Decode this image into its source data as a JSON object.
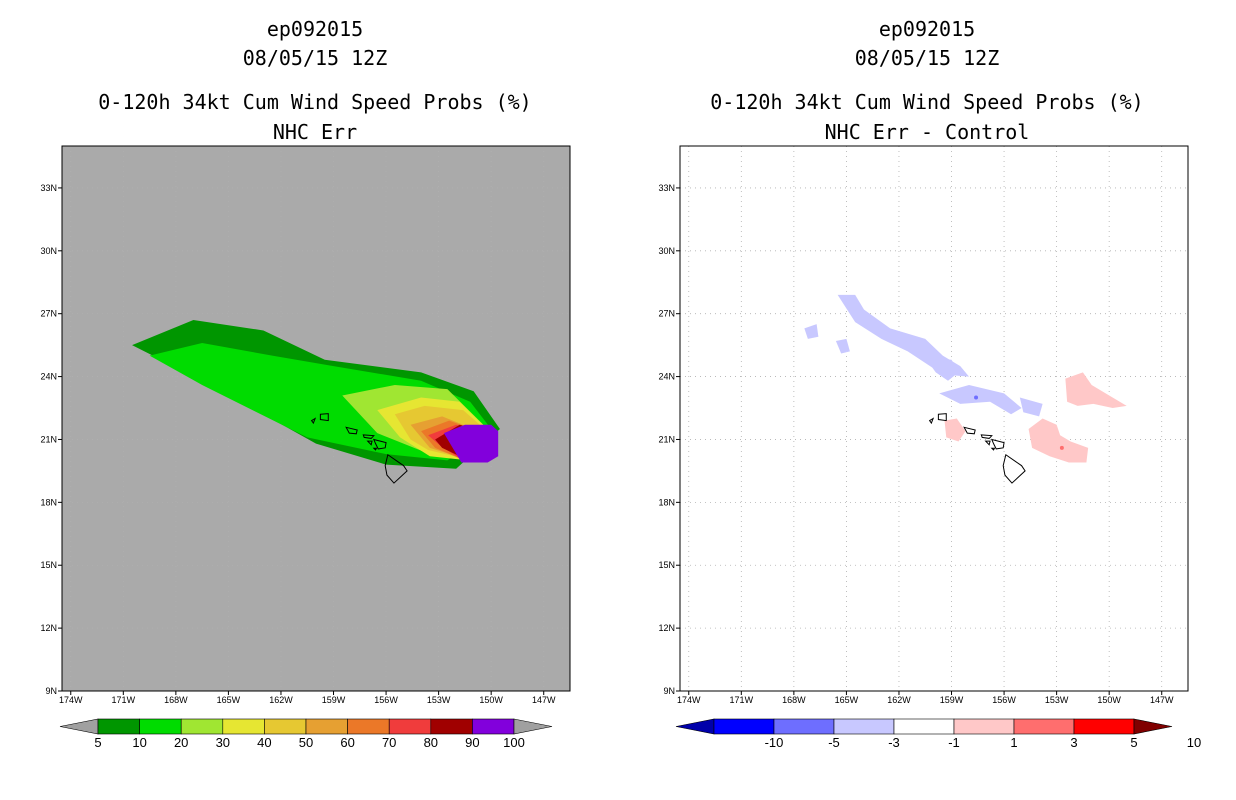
{
  "left": {
    "storm_id": "ep092015",
    "datetime": "08/05/15 12Z",
    "product": "0-120h 34kt Cum Wind Speed Probs (%)",
    "subtitle": "NHC Err",
    "colorbar": {
      "labels": [
        "5",
        "10",
        "20",
        "30",
        "40",
        "50",
        "60",
        "70",
        "80",
        "90",
        "100"
      ],
      "colors": [
        "#009600",
        "#00dc00",
        "#a0e632",
        "#e6e632",
        "#e6c832",
        "#e6a032",
        "#eb7828",
        "#f03c3c",
        "#a00000",
        "#8200dc",
        "#a0a0a0"
      ]
    }
  },
  "right": {
    "storm_id": "ep092015",
    "datetime": "08/05/15 12Z",
    "product": "0-120h 34kt Cum Wind Speed Probs (%)",
    "subtitle": "NHC Err - Control",
    "colorbar": {
      "labels": [
        "-10",
        "-5",
        "-3",
        "-1",
        "1",
        "3",
        "5",
        "10"
      ],
      "colors": [
        "#0000aa",
        "#0000ff",
        "#6e6eff",
        "#c8c8ff",
        "#ffffff",
        "#ffc8c8",
        "#ff6e6e",
        "#ff0000",
        "#800000"
      ]
    }
  },
  "map": {
    "lon_ticks": [
      "174W",
      "171W",
      "168W",
      "165W",
      "162W",
      "159W",
      "156W",
      "153W",
      "150W",
      "147W"
    ],
    "lat_ticks": [
      "33N",
      "30N",
      "27N",
      "24N",
      "21N",
      "18N",
      "15N",
      "12N",
      "9N"
    ],
    "lon_range": [
      -174.5,
      -145.5
    ],
    "lat_range": [
      9,
      35
    ],
    "background_color": "#aaaaaa"
  },
  "chart_data": [
    {
      "type": "heatmap",
      "title": "0-120h 34kt Cum Wind Speed Probs (%)",
      "subtitle": "NHC Err",
      "units": "%",
      "contour_levels": [
        5,
        10,
        20,
        30,
        40,
        50,
        60,
        70,
        80,
        90,
        100
      ],
      "regions": [
        {
          "level": 5,
          "lon": [
            -170.5,
            -167,
            -163,
            -159.5,
            -154,
            -151,
            -149.5,
            -152,
            -156,
            -160,
            -166
          ],
          "lat": [
            25.5,
            26.7,
            26.2,
            24.8,
            24.2,
            23.3,
            21.5,
            19.6,
            19.8,
            20.8,
            23.6
          ]
        },
        {
          "level": 10,
          "lon": [
            -169.5,
            -166.5,
            -162.5,
            -159,
            -154,
            -151.2,
            -150,
            -152.5,
            -156,
            -160.5,
            -166.5
          ],
          "lat": [
            25,
            25.6,
            25,
            24.5,
            23.8,
            22.8,
            21.5,
            20,
            20.3,
            21.1,
            23.6
          ]
        },
        {
          "level": 20,
          "lon": [
            -158.5,
            -155.5,
            -152.5,
            -150.2,
            -151,
            -153.5,
            -156.5
          ],
          "lat": [
            23.1,
            23.6,
            23.4,
            21.5,
            20.3,
            20.3,
            21.3
          ]
        },
        {
          "level": 30,
          "lon": [
            -156.5,
            -154,
            -151.8,
            -150.1,
            -151.3,
            -153.5,
            -155.2
          ],
          "lat": [
            22.4,
            23,
            22.8,
            21.4,
            20,
            20.2,
            21.1
          ]
        },
        {
          "level": 40,
          "lon": [
            -155.5,
            -153.8,
            -151.6,
            -150.1,
            -151.6,
            -153.6,
            -154.6
          ],
          "lat": [
            22.2,
            22.6,
            22.4,
            21.3,
            20.1,
            20.5,
            21
          ]
        },
        {
          "level": 50,
          "lon": [
            -154.6,
            -152.8,
            -150.1,
            -151.6,
            -153.5
          ],
          "lat": [
            21.7,
            22.1,
            21.2,
            20.1,
            20.6
          ]
        },
        {
          "level": 60,
          "lon": [
            -154,
            -152.4,
            -150.1,
            -151.8,
            -153.2
          ],
          "lat": [
            21.4,
            21.9,
            21.2,
            20.1,
            20.6
          ]
        },
        {
          "level": 70,
          "lon": [
            -153.6,
            -152,
            -150.1,
            -151.8,
            -152.9
          ],
          "lat": [
            21.2,
            21.7,
            21.2,
            20.1,
            20.7
          ]
        },
        {
          "level": 80,
          "lon": [
            -153.2,
            -151.8,
            -150.1,
            -151.8,
            -152.8
          ],
          "lat": [
            21.0,
            21.7,
            21.3,
            20.2,
            20.6
          ]
        },
        {
          "level": 90,
          "lon": [
            -152.7,
            -151.5,
            -150,
            -149.6,
            -149.6,
            -150.2,
            -151.7
          ],
          "lat": [
            21.3,
            21.7,
            21.7,
            21.4,
            20.2,
            19.9,
            19.9
          ]
        },
        {
          "level": 100,
          "lon": [
            -152.4,
            -151.3,
            -150,
            -149.7,
            -149.7,
            -150.4,
            -151.5
          ],
          "lat": [
            21.2,
            21.6,
            21.6,
            21.3,
            20.3,
            20.0,
            20.0
          ]
        }
      ]
    },
    {
      "type": "heatmap",
      "title": "0-120h 34kt Cum Wind Speed Probs (%)",
      "subtitle": "NHC Err - Control",
      "units": "%",
      "contour_levels": [
        -10,
        -5,
        -3,
        -1,
        1,
        3,
        5,
        10
      ],
      "regions": [
        {
          "level": -3,
          "lon": [
            -165.5,
            -164.5,
            -164,
            -162.5,
            -160.5,
            -159.5,
            -158.5,
            -158,
            -159.5,
            -161.5,
            -163,
            -164.5
          ],
          "lat": [
            27.9,
            27.9,
            27.2,
            26.3,
            25.8,
            25,
            24.5,
            24,
            24.1,
            25.2,
            25.8,
            26.6
          ]
        },
        {
          "level": -3,
          "lon": [
            -160.5,
            -159,
            -158.6,
            -159.2,
            -159.9
          ],
          "lat": [
            24.9,
            24.8,
            24.2,
            23.8,
            24.2
          ]
        },
        {
          "level": -3,
          "lon": [
            -159.7,
            -158,
            -156,
            -155,
            -155.6,
            -156.8,
            -158.5
          ],
          "lat": [
            23.2,
            23.6,
            23.2,
            22.5,
            22.2,
            22.8,
            22.7
          ]
        },
        {
          "level": -3,
          "lon": [
            -155.1,
            -153.8,
            -154,
            -154.9
          ],
          "lat": [
            23,
            22.7,
            22.1,
            22.3
          ]
        },
        {
          "level": -3,
          "lon": [
            -167.4,
            -166.7,
            -166.6,
            -167.2
          ],
          "lat": [
            26.3,
            26.5,
            25.9,
            25.8
          ]
        },
        {
          "level": -3,
          "lon": [
            -165.6,
            -165,
            -164.8,
            -165.3
          ],
          "lat": [
            25.7,
            25.8,
            25.2,
            25.1
          ]
        },
        {
          "level": 1,
          "lon": [
            -152.5,
            -151.5,
            -151,
            -150.2,
            -149,
            -149.8,
            -150.9,
            -151.8,
            -152.4
          ],
          "lat": [
            23.9,
            24.2,
            23.6,
            23.2,
            22.6,
            22.5,
            22.7,
            22.6,
            22.8
          ]
        },
        {
          "level": 1,
          "lon": [
            -154.6,
            -153.8,
            -153,
            -152.8,
            -152.2,
            -151.2,
            -151.3,
            -152.3,
            -153.4,
            -154.4
          ],
          "lat": [
            21.5,
            22,
            21.7,
            21.2,
            20.9,
            20.6,
            19.9,
            19.9,
            20.2,
            20.6
          ]
        },
        {
          "level": 1,
          "lon": [
            -159.4,
            -158.7,
            -158.2,
            -158.6,
            -159.3
          ],
          "lat": [
            21.9,
            22,
            21.4,
            20.9,
            21.1
          ]
        }
      ],
      "spots": [
        {
          "level": 3,
          "lon": -152.7,
          "lat": 20.6
        },
        {
          "level": -5,
          "lon": -157.6,
          "lat": 23.0
        }
      ]
    }
  ]
}
